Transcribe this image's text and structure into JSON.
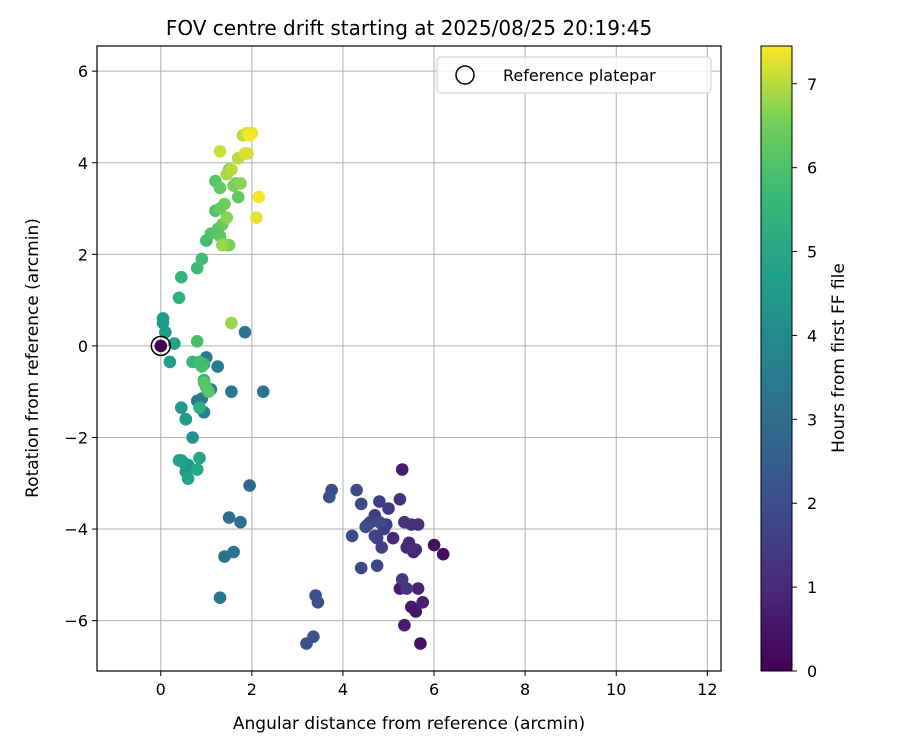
{
  "chart_data": {
    "type": "scatter",
    "title": "FOV centre drift starting at 2025/08/25 20:19:45",
    "xlabel": "Angular distance from reference (arcmin)",
    "ylabel": "Rotation from reference (arcmin)",
    "xlim": [
      -1.4,
      12.3
    ],
    "ylim": [
      -7.1,
      6.55
    ],
    "x_ticks": [
      0,
      2,
      4,
      6,
      8,
      10,
      12
    ],
    "y_ticks": [
      -6,
      -4,
      -2,
      0,
      2,
      4,
      6
    ],
    "grid": true,
    "legend": {
      "placement": "top-right",
      "entries": [
        "Reference platepar"
      ]
    },
    "colorbar": {
      "label": "Hours from first FF file",
      "range": [
        0,
        7.45
      ],
      "ticks": [
        0,
        1,
        2,
        3,
        4,
        5,
        6,
        7
      ],
      "colormap": "viridis"
    },
    "reference_point": {
      "x": 0,
      "y": 0
    },
    "series": [
      {
        "x": [
          0.0,
          6.2,
          6.0,
          5.7,
          5.6,
          5.5,
          5.35,
          5.25,
          5.3,
          5.75,
          5.65,
          5.4,
          5.55,
          5.45,
          5.1,
          5.6,
          5.5,
          5.65,
          5.25,
          5.35,
          5.4,
          5.0,
          5.3,
          4.95,
          4.8,
          4.7,
          4.9,
          4.6,
          4.75,
          4.85,
          4.75,
          4.7,
          4.55,
          4.4,
          4.8,
          4.4,
          4.2,
          4.3,
          4.5,
          3.75,
          3.7,
          3.4,
          3.45,
          3.35,
          3.2,
          1.95,
          1.5,
          1.75,
          1.4,
          1.6,
          1.3,
          2.25,
          1.55,
          1.0,
          0.8,
          0.9,
          1.1,
          1.25,
          0.95,
          0.7,
          1.85,
          0.6,
          0.55,
          0.45,
          0.5,
          0.4,
          0.55,
          0.6,
          0.85,
          0.8,
          0.95,
          0.85,
          0.7,
          0.55,
          0.45,
          0.3,
          0.2,
          0.1,
          0.05,
          0.05,
          0.95,
          1.0,
          0.9,
          0.85,
          0.8,
          0.95,
          1.05,
          0.4,
          0.45,
          0.8,
          0.9,
          1.55,
          1.0,
          1.1,
          1.25,
          1.3,
          1.35,
          1.45,
          1.5,
          1.2,
          1.3,
          1.4,
          1.5,
          1.45,
          1.35,
          1.2,
          1.25,
          1.3,
          1.7,
          1.65,
          1.6,
          1.75,
          1.45,
          1.55,
          1.7,
          1.3,
          1.9,
          1.8,
          1.9,
          2.0,
          1.95,
          1.85,
          2.1,
          2.15
        ],
        "y": [
          0.0,
          -4.55,
          -4.35,
          -6.5,
          -5.8,
          -5.7,
          -6.1,
          -5.3,
          -2.7,
          -5.6,
          -5.3,
          -4.4,
          -4.5,
          -4.3,
          -4.2,
          -4.45,
          -3.9,
          -3.9,
          -3.35,
          -3.85,
          -5.3,
          -3.55,
          -5.1,
          -3.9,
          -3.4,
          -3.7,
          -4.0,
          -3.85,
          -4.2,
          -4.4,
          -4.8,
          -4.15,
          -3.9,
          -4.85,
          -3.85,
          -3.45,
          -4.15,
          -3.15,
          -3.95,
          -3.15,
          -3.3,
          -5.45,
          -5.6,
          -6.35,
          -6.5,
          -3.05,
          -3.75,
          -3.85,
          -4.6,
          -4.5,
          -5.5,
          -1.0,
          -1.0,
          -0.25,
          -1.2,
          -1.15,
          -0.95,
          -0.45,
          -1.45,
          -2.0,
          0.3,
          -2.6,
          -2.75,
          -2.5,
          -2.55,
          -2.5,
          -1.6,
          -2.9,
          -2.45,
          -2.7,
          -0.75,
          -1.35,
          -0.35,
          -1.6,
          -1.35,
          0.05,
          -0.35,
          0.3,
          0.6,
          0.5,
          -0.4,
          -0.9,
          -0.45,
          -0.35,
          0.1,
          -0.8,
          -1.0,
          1.05,
          1.5,
          1.7,
          1.9,
          0.5,
          2.3,
          2.45,
          2.55,
          2.4,
          2.65,
          2.2,
          2.2,
          3.6,
          3.45,
          3.1,
          3.85,
          2.8,
          2.2,
          2.95,
          2.5,
          3.0,
          3.25,
          3.55,
          3.5,
          3.55,
          3.75,
          3.85,
          4.1,
          4.25,
          4.2,
          4.6,
          4.65,
          4.65,
          4.6,
          4.2,
          2.8,
          3.25
        ],
        "hours": [
          0.0,
          0.3,
          0.35,
          0.45,
          0.5,
          0.55,
          0.6,
          0.65,
          0.7,
          0.75,
          0.8,
          0.85,
          0.9,
          0.95,
          1.0,
          1.05,
          1.1,
          1.15,
          1.2,
          1.25,
          1.3,
          1.35,
          1.4,
          1.45,
          1.5,
          1.5,
          1.55,
          1.6,
          1.6,
          1.65,
          1.7,
          1.7,
          1.75,
          1.8,
          1.85,
          1.9,
          1.9,
          1.95,
          2.0,
          2.0,
          2.05,
          2.05,
          2.1,
          2.15,
          2.2,
          2.8,
          3.0,
          3.0,
          3.1,
          3.2,
          3.3,
          3.2,
          3.3,
          3.4,
          3.4,
          3.5,
          3.5,
          3.4,
          3.6,
          4.3,
          3.3,
          4.4,
          4.5,
          4.6,
          4.7,
          4.75,
          4.8,
          4.8,
          4.9,
          5.0,
          5.3,
          5.3,
          5.5,
          4.6,
          4.5,
          4.8,
          4.7,
          4.6,
          4.5,
          4.6,
          5.6,
          5.7,
          5.9,
          5.8,
          5.9,
          6.1,
          6.2,
          5.4,
          5.5,
          5.7,
          5.8,
          6.8,
          5.8,
          6.0,
          6.1,
          6.3,
          6.4,
          6.5,
          6.6,
          6.1,
          6.3,
          6.5,
          6.6,
          6.7,
          6.8,
          6.0,
          6.2,
          6.4,
          6.3,
          6.5,
          6.6,
          6.7,
          6.9,
          7.0,
          7.0,
          7.1,
          7.1,
          7.0,
          7.2,
          7.3,
          7.4,
          7.2,
          7.3,
          7.4
        ]
      }
    ]
  }
}
